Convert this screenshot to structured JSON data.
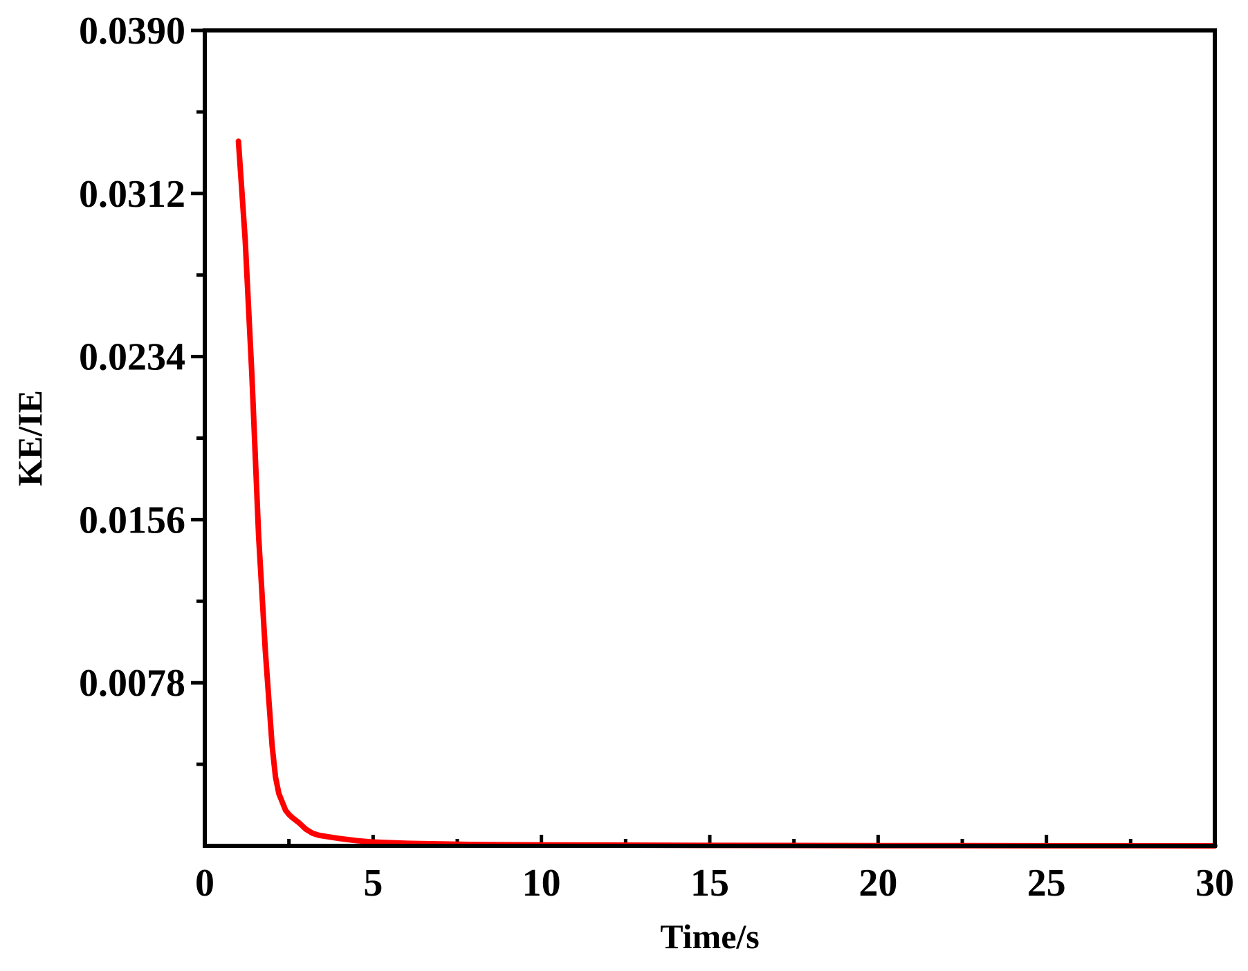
{
  "chart_data": {
    "type": "line",
    "title": "",
    "xlabel": "Time/s",
    "ylabel": "KE/IE",
    "xlim": [
      0,
      30
    ],
    "ylim": [
      0,
      0.039
    ],
    "x_ticks": [
      0,
      5,
      10,
      15,
      20,
      25,
      30
    ],
    "x_tick_labels": [
      "0",
      "5",
      "10",
      "15",
      "20",
      "25",
      "30"
    ],
    "y_ticks": [
      0.0078,
      0.0156,
      0.0234,
      0.0312,
      0.039
    ],
    "y_tick_labels": [
      "0.0078",
      "0.0156",
      "0.0234",
      "0.0312",
      "0.0390"
    ],
    "grid": false,
    "legend": "none",
    "series": [
      {
        "color": "#ff0000",
        "x": [
          1.0,
          1.2,
          1.4,
          1.6,
          1.8,
          2.0,
          2.1,
          2.2,
          2.3,
          2.4,
          2.5,
          2.6,
          2.8,
          3.0,
          3.2,
          3.4,
          3.6,
          3.8,
          4.0,
          4.5,
          5.0,
          6.0,
          7.0,
          8.0,
          10.0,
          15.0,
          20.0,
          25.0,
          30.0
        ],
        "y": [
          0.0337,
          0.029,
          0.0225,
          0.0148,
          0.0093,
          0.0048,
          0.0033,
          0.0025,
          0.0021,
          0.0017,
          0.0015,
          0.00135,
          0.0011,
          0.0008,
          0.0006,
          0.0005,
          0.00045,
          0.0004,
          0.00035,
          0.00025,
          0.00018,
          0.00012,
          9e-05,
          6e-05,
          4e-05,
          2e-05,
          1e-05,
          5e-06,
          0.0
        ]
      }
    ]
  }
}
